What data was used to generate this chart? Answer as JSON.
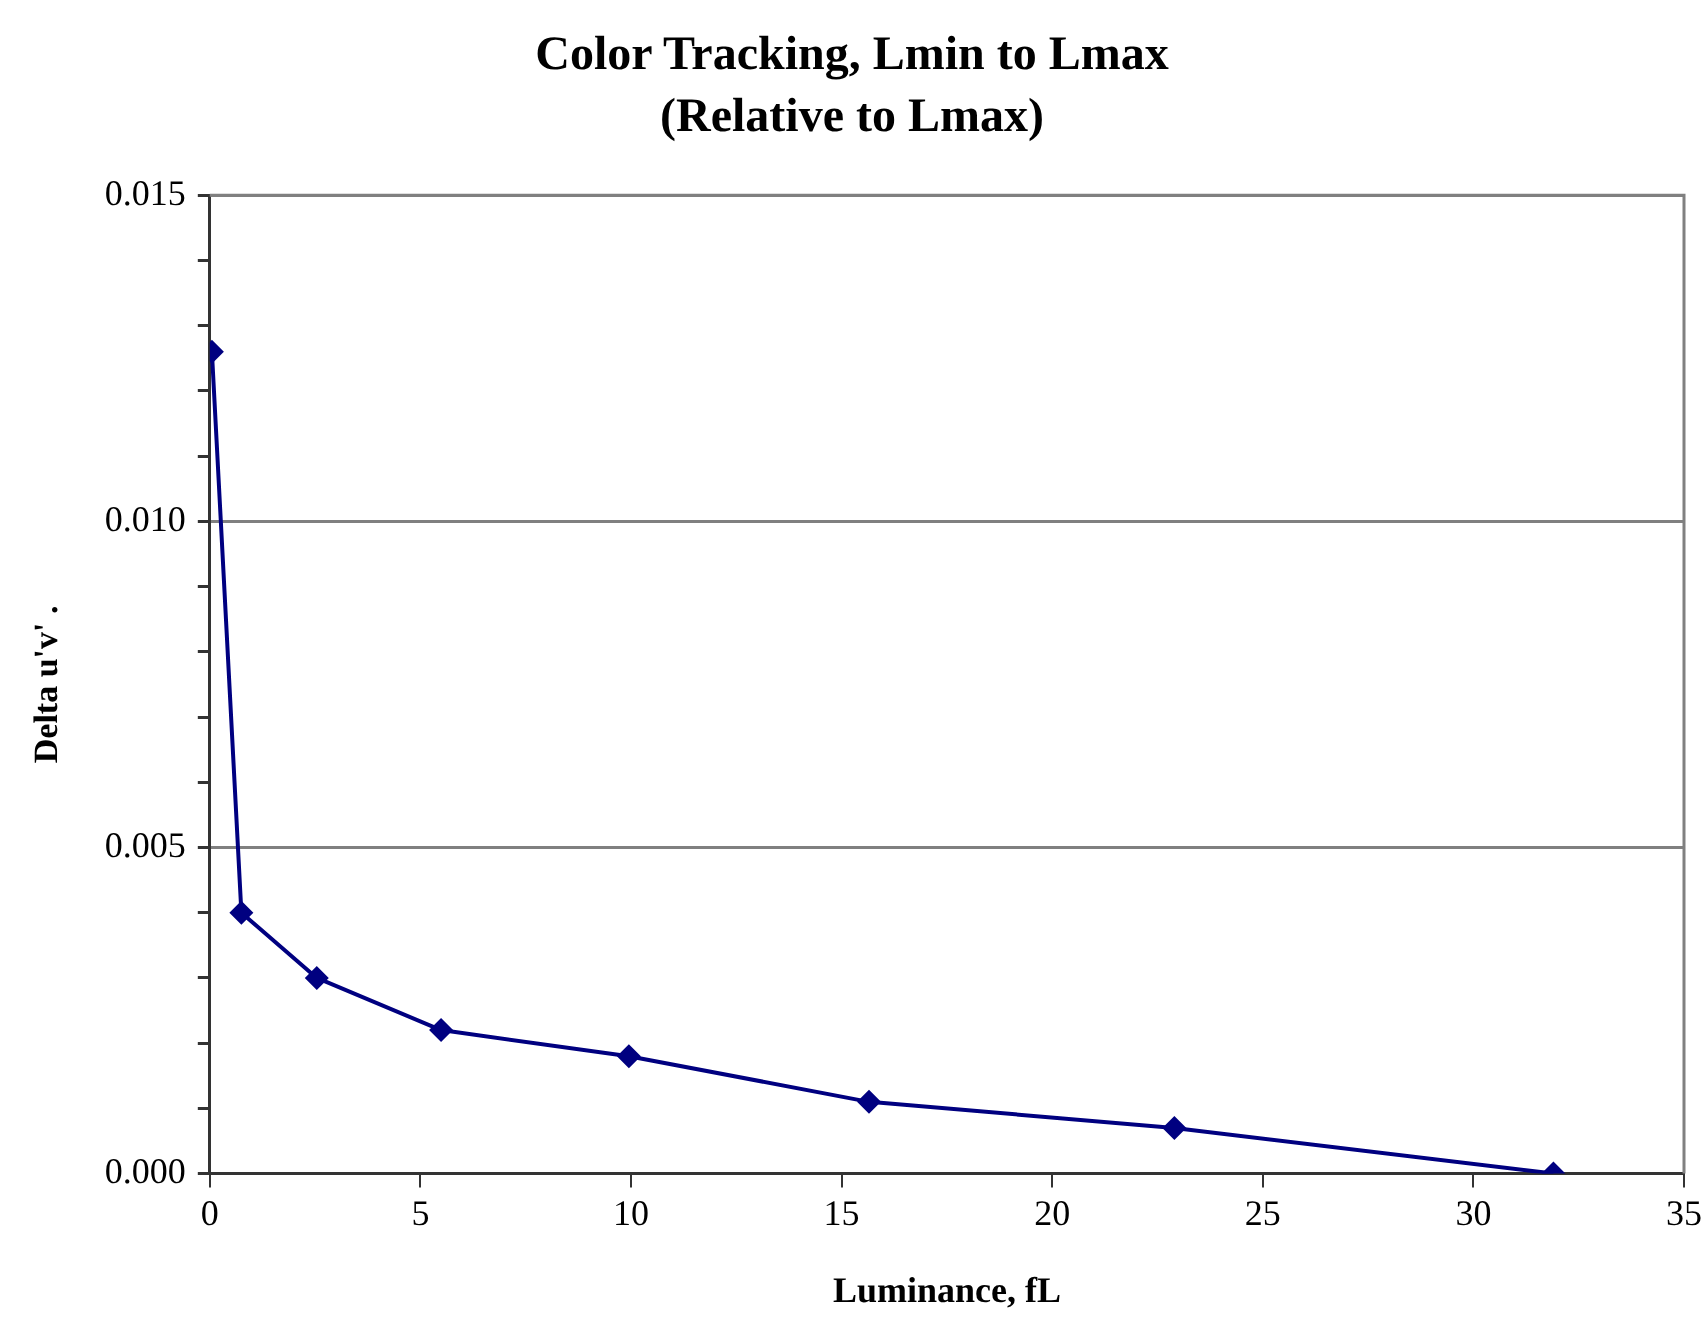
{
  "chart_data": {
    "type": "line",
    "title": "Color Tracking, Lmin to Lmax",
    "subtitle": "(Relative to Lmax)",
    "xlabel": "Luminance, fL",
    "ylabel": "Delta u'v' .",
    "series": [
      {
        "color": "#000080",
        "x": [
          0.05,
          0.75,
          2.54,
          5.49,
          9.95,
          15.65,
          22.9,
          31.9
        ],
        "values": [
          0.0126,
          0.004,
          0.003,
          0.0022,
          0.0018,
          0.0011,
          0.0007,
          0.0
        ]
      }
    ],
    "xlim": [
      0,
      35
    ],
    "xticks": [
      0,
      5,
      10,
      15,
      20,
      25,
      30,
      35
    ],
    "ylim": [
      0,
      0.015
    ],
    "yticks": [
      {
        "value": 0,
        "label": "0.000"
      },
      {
        "value": 0.001,
        "label": null
      },
      {
        "value": 0.002,
        "label": null
      },
      {
        "value": 0.003,
        "label": null
      },
      {
        "value": 0.004,
        "label": null
      },
      {
        "value": 0.005,
        "label": "0.005"
      },
      {
        "value": 0.006,
        "label": null
      },
      {
        "value": 0.007,
        "label": null
      },
      {
        "value": 0.008,
        "label": null
      },
      {
        "value": 0.009,
        "label": null
      },
      {
        "value": 0.01,
        "label": "0.010"
      },
      {
        "value": 0.011,
        "label": null
      },
      {
        "value": 0.012,
        "label": null
      },
      {
        "value": 0.013,
        "label": null
      },
      {
        "value": 0.014,
        "label": null
      },
      {
        "value": 0.015,
        "label": "0.015"
      }
    ],
    "grid": "y",
    "legend": false,
    "marker": "diamond",
    "line_style": "solid"
  }
}
